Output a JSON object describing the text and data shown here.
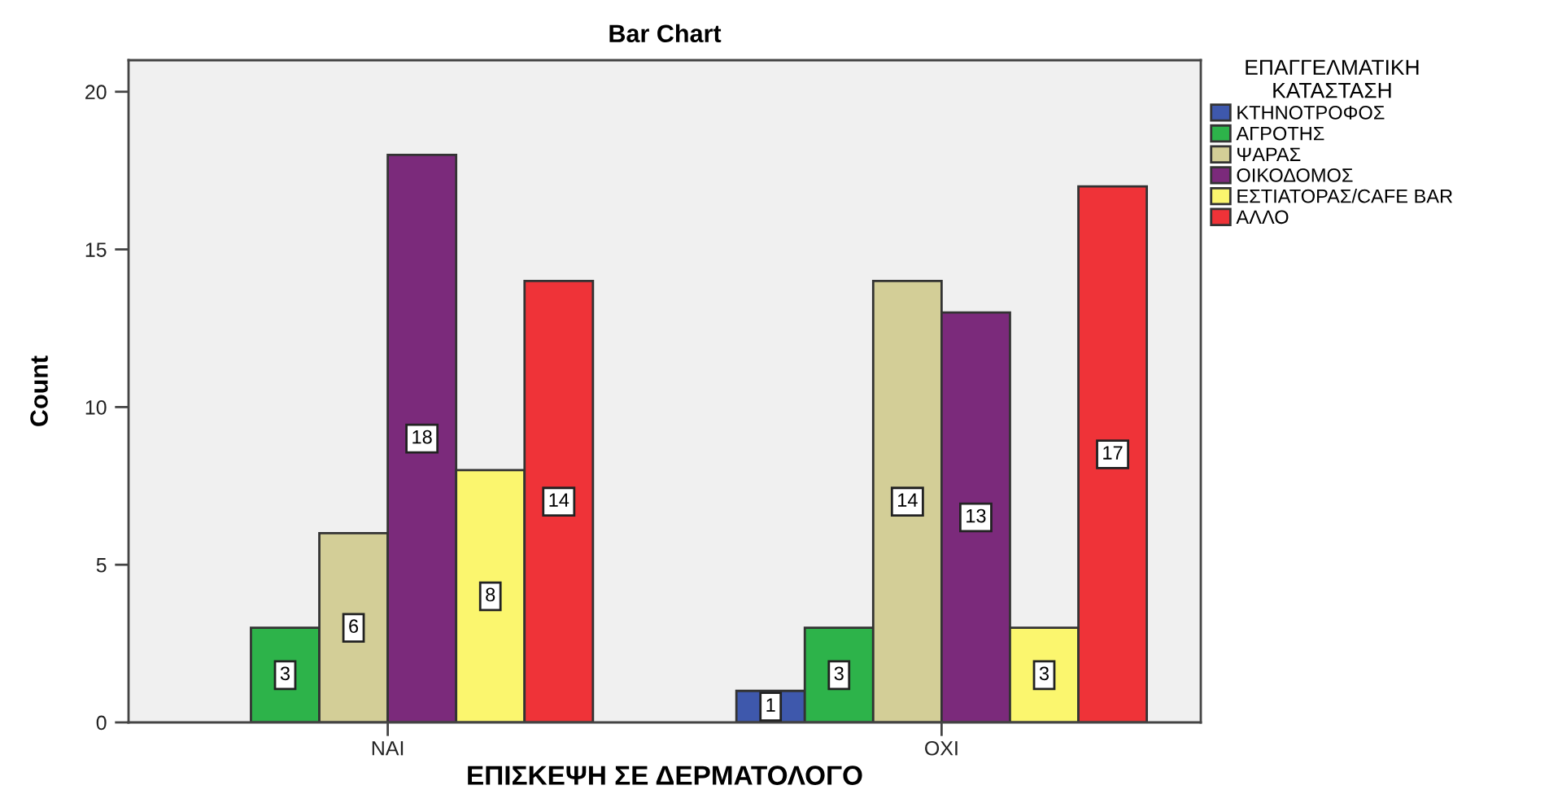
{
  "chart_data": {
    "type": "bar",
    "title": "Bar Chart",
    "xlabel": "ΕΠΙΣΚΕΨΗ ΣΕ ΔΕΡΜΑΤΟΛΟΓΟ",
    "ylabel": "Count",
    "legend_title": "ΕΠΑΓΓΕΛΜΑΤΙΚΗ\nΚΑΤΑΣΤΑΣΗ",
    "categories": [
      "ΝΑΙ",
      "ΟΧΙ"
    ],
    "series": [
      {
        "name": "ΚΤΗΝΟΤΡΟΦΟΣ",
        "color": "#3e58ac",
        "values": [
          null,
          1
        ]
      },
      {
        "name": "ΑΓΡΟΤΗΣ",
        "color": "#2db34a",
        "values": [
          3,
          3
        ]
      },
      {
        "name": "ΨΑΡΑΣ",
        "color": "#d3ce97",
        "values": [
          6,
          14
        ]
      },
      {
        "name": "ΟΙΚΟΔΟΜΟΣ",
        "color": "#7b2a7b",
        "values": [
          18,
          13
        ]
      },
      {
        "name": "ΕΣΤΙΑΤΟΡΑΣ/CAFE BAR",
        "color": "#fbf66e",
        "values": [
          8,
          3
        ]
      },
      {
        "name": "ΑΛΛΟ",
        "color": "#ef3338",
        "values": [
          14,
          17
        ]
      }
    ],
    "ylim": [
      0,
      21
    ],
    "yticks": [
      0,
      5,
      10,
      15,
      20
    ],
    "grid": false,
    "legend": "right",
    "data_labels": true
  }
}
